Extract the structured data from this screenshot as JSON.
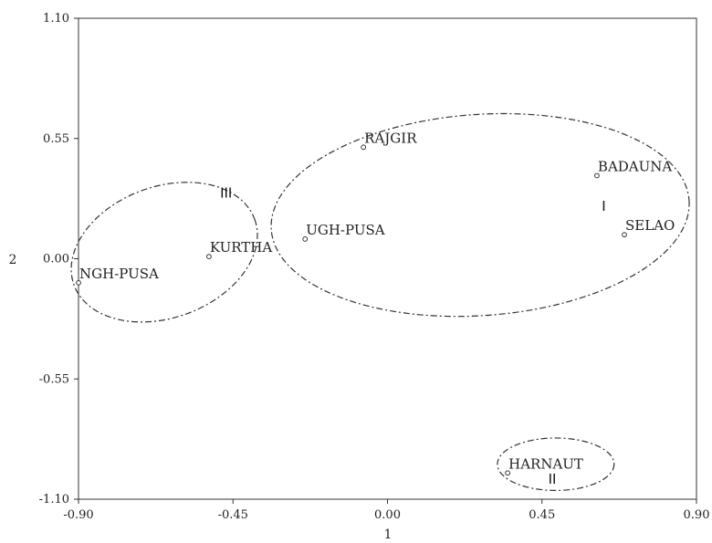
{
  "chart_data": {
    "type": "scatter",
    "xlabel": "1",
    "ylabel": "2",
    "xlim": [
      -0.9,
      0.9
    ],
    "ylim": [
      -1.1,
      1.1
    ],
    "x_ticks": [
      "-0.90",
      "-0.45",
      "0.00",
      "0.45",
      "0.90"
    ],
    "y_ticks": [
      "1.10",
      "0.55",
      "0.00",
      "-0.55",
      "-1.10"
    ],
    "grid": false,
    "points": [
      {
        "label": "RAJGIR",
        "x": -0.07,
        "y": 0.51
      },
      {
        "label": "BADAUNA",
        "x": 0.61,
        "y": 0.38
      },
      {
        "label": "SELAO",
        "x": 0.69,
        "y": 0.11
      },
      {
        "label": "UGH-PUSA",
        "x": -0.24,
        "y": 0.09
      },
      {
        "label": "KURTHA",
        "x": -0.52,
        "y": 0.01
      },
      {
        "label": "NGH-PUSA",
        "x": -0.9,
        "y": -0.11
      },
      {
        "label": "HARNAUT",
        "x": 0.35,
        "y": -0.98
      }
    ],
    "clusters": [
      {
        "label": "I",
        "cx": 0.27,
        "cy": 0.2,
        "rx": 0.61,
        "ry": 0.46,
        "label_x": 0.63,
        "label_y": 0.22
      },
      {
        "label": "II",
        "cx": 0.49,
        "cy": -0.94,
        "rx": 0.17,
        "ry": 0.12,
        "label_x": 0.48,
        "label_y": -1.03
      },
      {
        "label": "III",
        "cx": -0.65,
        "cy": 0.03,
        "rx": 0.28,
        "ry": 0.3,
        "label_x": -0.47,
        "label_y": 0.28
      }
    ]
  }
}
